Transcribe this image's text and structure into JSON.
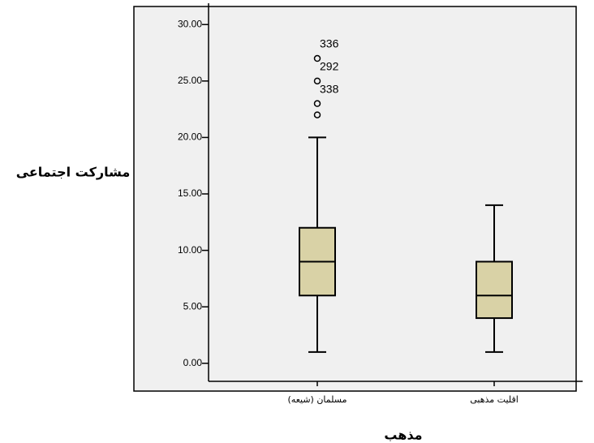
{
  "chart_data": {
    "type": "box",
    "x_label": "مذهب",
    "y_label": "مشارکت اجتماعی",
    "categories": [
      "مسلمان (شیعه)",
      "اقلیت مذهبی"
    ],
    "color": "#d9d2a6",
    "boxes": [
      {
        "whisker_low": 1,
        "q1": 6,
        "median": 9,
        "q3": 12,
        "whisker_high": 20,
        "outliers": [
          27,
          25,
          23,
          22
        ],
        "outlier_labels": [
          "336",
          "292",
          "338",
          null
        ]
      },
      {
        "whisker_low": 1,
        "q1": 4,
        "median": 6,
        "q3": 9,
        "whisker_high": 14,
        "outliers": [],
        "outlier_labels": []
      }
    ],
    "ylim": [
      -1.6,
      31.6
    ],
    "yticks": [
      {
        "value": 0,
        "label": "0.00"
      },
      {
        "value": 5,
        "label": "5.00"
      },
      {
        "value": 10,
        "label": "10.00"
      },
      {
        "value": 15,
        "label": "15.00"
      },
      {
        "value": 20,
        "label": "20.00"
      },
      {
        "value": 25,
        "label": "25.00"
      },
      {
        "value": 30,
        "label": "30.00"
      }
    ]
  }
}
